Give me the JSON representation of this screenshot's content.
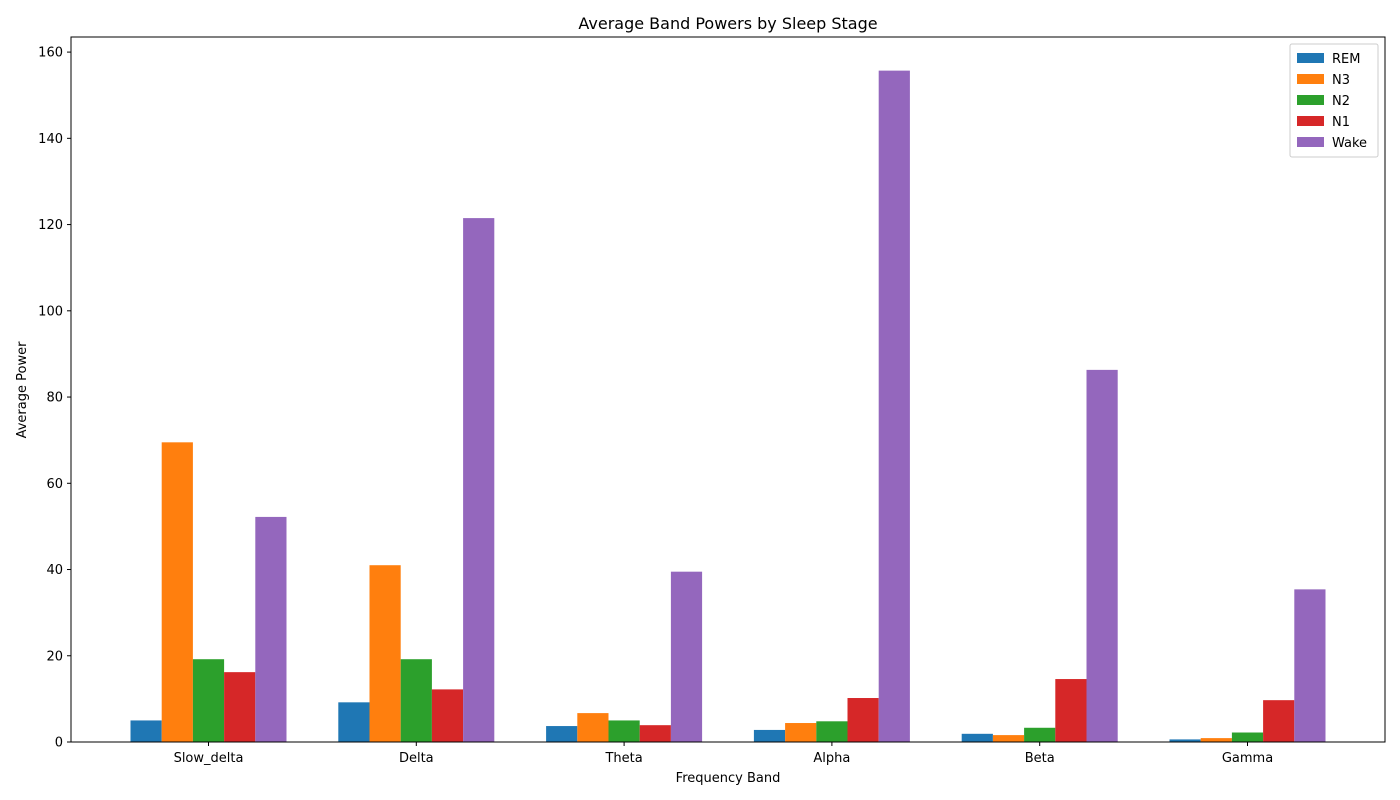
{
  "chart_data": {
    "type": "bar",
    "title": "Average Band Powers by Sleep Stage",
    "xlabel": "Frequency Band",
    "ylabel": "Average Power",
    "categories": [
      "Slow_delta",
      "Delta",
      "Theta",
      "Alpha",
      "Beta",
      "Gamma"
    ],
    "ylim": [
      0,
      163.5
    ],
    "yticks": [
      0,
      20,
      40,
      60,
      80,
      100,
      120,
      140,
      160
    ],
    "grid": false,
    "legend_position": "top-right",
    "series": [
      {
        "name": "REM",
        "color": "#1f77b4",
        "values": [
          5.0,
          9.2,
          3.7,
          2.8,
          1.9,
          0.6
        ]
      },
      {
        "name": "N3",
        "color": "#ff7f0e",
        "values": [
          69.5,
          41.0,
          6.7,
          4.4,
          1.6,
          0.9
        ]
      },
      {
        "name": "N2",
        "color": "#2ca02c",
        "values": [
          19.2,
          19.2,
          5.0,
          4.8,
          3.3,
          2.2
        ]
      },
      {
        "name": "N1",
        "color": "#d62728",
        "values": [
          16.2,
          12.2,
          3.9,
          10.2,
          14.6,
          9.7
        ]
      },
      {
        "name": "Wake",
        "color": "#9467bd",
        "values": [
          52.2,
          121.5,
          39.5,
          155.7,
          86.3,
          35.4
        ]
      }
    ]
  }
}
